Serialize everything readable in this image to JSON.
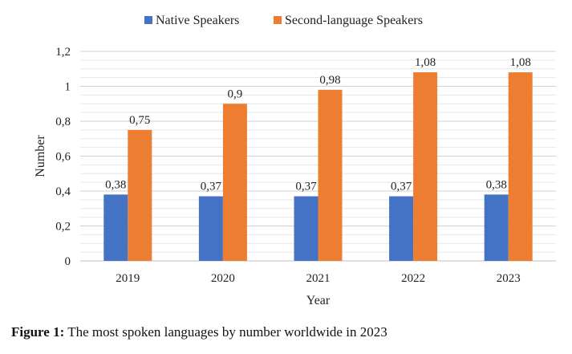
{
  "chart_data": {
    "type": "bar",
    "categories": [
      "2019",
      "2020",
      "2021",
      "2022",
      "2023"
    ],
    "series": [
      {
        "name": "Native Speakers",
        "values": [
          0.38,
          0.37,
          0.37,
          0.37,
          0.38
        ],
        "labels": [
          "0,38",
          "0,37",
          "0,37",
          "0,37",
          "0,38"
        ],
        "color": "#4472C4"
      },
      {
        "name": "Second-language Speakers",
        "values": [
          0.75,
          0.9,
          0.98,
          1.08,
          1.08
        ],
        "labels": [
          "0,75",
          "0,9",
          "0,98",
          "1,08",
          "1,08"
        ],
        "color": "#ED7D31"
      }
    ],
    "xlabel": "Year",
    "ylabel": "Number",
    "ylim": [
      0,
      1.2
    ],
    "yticks": [
      0,
      0.2,
      0.4,
      0.6,
      0.8,
      1,
      1.2
    ],
    "ytick_labels": [
      "0",
      "0,2",
      "0,4",
      "0,6",
      "0,8",
      "1",
      "1,2"
    ],
    "grid": true,
    "legend_position": "top"
  },
  "caption": {
    "label": "Figure 1:",
    "text": " The most spoken languages by number worldwide in 2023"
  }
}
